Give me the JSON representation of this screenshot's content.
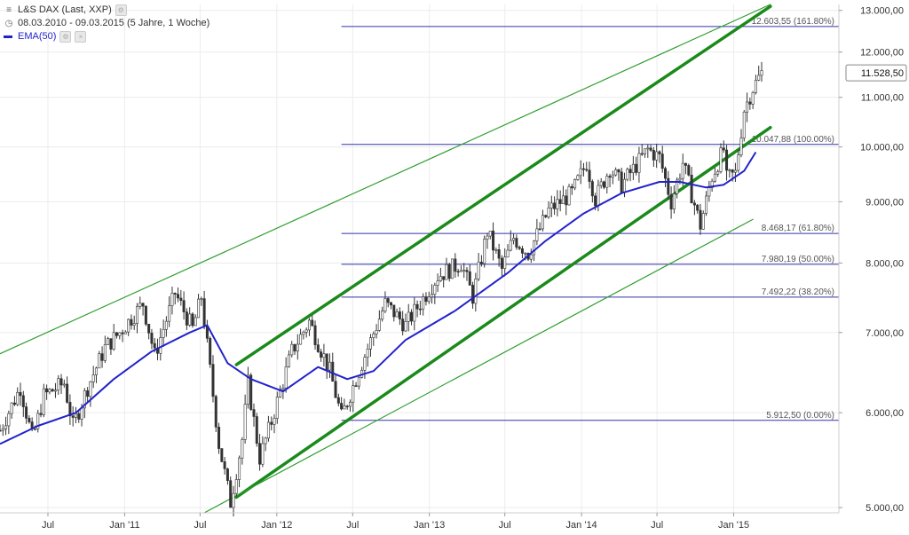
{
  "legend": {
    "title": "L&S DAX (Last, XXP)",
    "range": "08.03.2010 - 09.03.2015 (5 Jahre, 1 Woche)",
    "ema": "EMA(50)"
  },
  "colors": {
    "price": "#333333",
    "ema": "#2222cc",
    "fib": "#3333aa",
    "channel": "#1a8a1a",
    "channel_outer": "#2e9e2e",
    "last_badge_border": "#888888"
  },
  "chart_data": {
    "type": "candlestick",
    "y_scale": "log",
    "ylim": [
      4950,
      13150
    ],
    "x_start": "2010-03-08",
    "x_end": "2015-03-09",
    "y_ticks": [
      "13.000,00",
      "12.000,00",
      "11.000,00",
      "10.000,00",
      "9.000,00",
      "8.000,00",
      "7.000,00",
      "6.000,00",
      "5.000,00"
    ],
    "y_tick_values": [
      13000,
      12000,
      11000,
      10000,
      9000,
      8000,
      7000,
      6000,
      5000
    ],
    "x_ticks": [
      {
        "date": "2010-07-01",
        "label": "Jul"
      },
      {
        "date": "2011-01-01",
        "label": "Jan '11"
      },
      {
        "date": "2011-07-01",
        "label": "Jul"
      },
      {
        "date": "2012-01-01",
        "label": "Jan '12"
      },
      {
        "date": "2012-07-01",
        "label": "Jul"
      },
      {
        "date": "2013-01-01",
        "label": "Jan '13"
      },
      {
        "date": "2013-07-01",
        "label": "Jul"
      },
      {
        "date": "2014-01-01",
        "label": "Jan '14"
      },
      {
        "date": "2014-07-01",
        "label": "Jul"
      },
      {
        "date": "2015-01-01",
        "label": "Jan '15"
      }
    ],
    "last_value": {
      "value": 11528.5,
      "label": "11.528,50"
    },
    "price_path": [
      [
        "2010-03-08",
        5800
      ],
      [
        "2010-04-26",
        6300
      ],
      [
        "2010-05-25",
        5700
      ],
      [
        "2010-06-21",
        6200
      ],
      [
        "2010-08-09",
        6350
      ],
      [
        "2010-08-30",
        5850
      ],
      [
        "2010-10-04",
        6300
      ],
      [
        "2010-11-15",
        6800
      ],
      [
        "2010-12-20",
        7000
      ],
      [
        "2011-02-14",
        7400
      ],
      [
        "2011-03-14",
        6700
      ],
      [
        "2011-05-02",
        7550
      ],
      [
        "2011-06-13",
        7050
      ],
      [
        "2011-07-04",
        7500
      ],
      [
        "2011-08-15",
        5650
      ],
      [
        "2011-09-12",
        5050
      ],
      [
        "2011-10-10",
        5700
      ],
      [
        "2011-10-24",
        6350
      ],
      [
        "2011-11-21",
        5500
      ],
      [
        "2011-12-19",
        5900
      ],
      [
        "2012-02-06",
        6750
      ],
      [
        "2012-03-19",
        7150
      ],
      [
        "2012-05-07",
        6500
      ],
      [
        "2012-06-04",
        5950
      ],
      [
        "2012-07-23",
        6600
      ],
      [
        "2012-09-17",
        7400
      ],
      [
        "2012-11-05",
        7100
      ],
      [
        "2013-01-21",
        7800
      ],
      [
        "2013-03-18",
        8000
      ],
      [
        "2013-04-15",
        7500
      ],
      [
        "2013-05-20",
        8500
      ],
      [
        "2013-06-24",
        7900
      ],
      [
        "2013-07-22",
        8400
      ],
      [
        "2013-08-26",
        8150
      ],
      [
        "2013-10-14",
        8850
      ],
      [
        "2013-12-09",
        9150
      ],
      [
        "2014-01-13",
        9700
      ],
      [
        "2014-02-03",
        9050
      ],
      [
        "2014-03-10",
        9600
      ],
      [
        "2014-04-07",
        9300
      ],
      [
        "2014-06-09",
        9950
      ],
      [
        "2014-07-07",
        9800
      ],
      [
        "2014-08-04",
        9000
      ],
      [
        "2014-09-01",
        9700
      ],
      [
        "2014-10-13",
        8600
      ],
      [
        "2014-11-10",
        9450
      ],
      [
        "2014-12-08",
        9950
      ],
      [
        "2014-12-15",
        9400
      ],
      [
        "2015-01-05",
        9500
      ],
      [
        "2015-01-26",
        10750
      ],
      [
        "2015-02-16",
        11200
      ],
      [
        "2015-03-09",
        11528.5
      ]
    ],
    "ema_path": [
      [
        "2010-03-08",
        5650
      ],
      [
        "2010-06-07",
        5850
      ],
      [
        "2010-09-06",
        6000
      ],
      [
        "2010-12-06",
        6400
      ],
      [
        "2011-03-07",
        6750
      ],
      [
        "2011-06-06",
        7000
      ],
      [
        "2011-07-18",
        7100
      ],
      [
        "2011-09-05",
        6600
      ],
      [
        "2011-10-31",
        6400
      ],
      [
        "2012-01-16",
        6250
      ],
      [
        "2012-04-09",
        6550
      ],
      [
        "2012-06-18",
        6400
      ],
      [
        "2012-08-20",
        6500
      ],
      [
        "2012-11-05",
        6900
      ],
      [
        "2013-03-04",
        7300
      ],
      [
        "2013-07-08",
        7850
      ],
      [
        "2013-10-07",
        8350
      ],
      [
        "2014-01-06",
        8800
      ],
      [
        "2014-04-07",
        9150
      ],
      [
        "2014-07-07",
        9350
      ],
      [
        "2014-08-25",
        9350
      ],
      [
        "2014-10-27",
        9250
      ],
      [
        "2014-12-08",
        9300
      ],
      [
        "2015-01-26",
        9550
      ],
      [
        "2015-02-23",
        9900
      ]
    ],
    "fib_levels": [
      {
        "value": 12603.55,
        "label": "12.603,55 (161.80%)"
      },
      {
        "value": 10047.88,
        "label": "10.047,88 (100.00%)"
      },
      {
        "value": 8468.17,
        "label": "8.468,17 (61.80%)"
      },
      {
        "value": 7980.19,
        "label": "7.980,19 (50.00%)"
      },
      {
        "value": 7492.22,
        "label": "7.492,22 (38.20%)"
      },
      {
        "value": 5912.5,
        "label": "5.912,50 (0.00%)"
      }
    ],
    "fib_start": "2012-06-04",
    "channel_lines": [
      {
        "kind": "thick",
        "from": [
          "2011-09-26",
          6580
        ],
        "to": [
          "2015-03-30",
          13100
        ]
      },
      {
        "kind": "thick",
        "from": [
          "2011-09-26",
          5100
        ],
        "to": [
          "2015-03-30",
          10380
        ]
      },
      {
        "kind": "thin",
        "from": [
          "2010-03-08",
          6720
        ],
        "to": [
          "2015-03-30",
          13150
        ]
      },
      {
        "kind": "thin",
        "from": [
          "2011-07-11",
          4950
        ],
        "to": [
          "2015-02-16",
          8700
        ]
      }
    ]
  }
}
